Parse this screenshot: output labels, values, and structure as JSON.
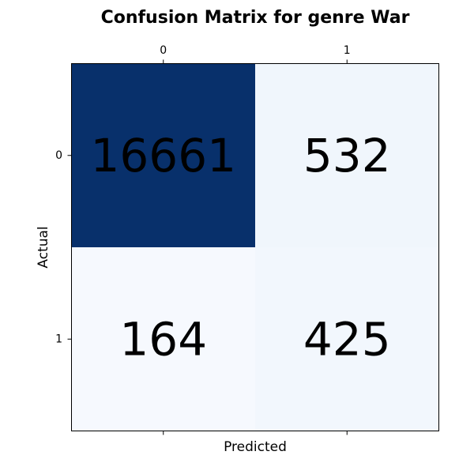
{
  "chart_data": {
    "type": "heatmap",
    "title": "Confusion Matrix for genre War",
    "xlabel": "Predicted",
    "ylabel": "Actual",
    "x_categories": [
      "0",
      "1"
    ],
    "y_categories": [
      "0",
      "1"
    ],
    "values": [
      [
        16661,
        532
      ],
      [
        164,
        425
      ]
    ],
    "value_labels": [
      [
        "16661",
        "532"
      ],
      [
        "164",
        "425"
      ]
    ],
    "colormap": "Blues",
    "cell_colors": [
      [
        "#08306b",
        "#f0f6fc"
      ],
      [
        "#f6f9fe",
        "#f2f7fd"
      ]
    ],
    "x_ticks_position": "top",
    "grid": false
  }
}
